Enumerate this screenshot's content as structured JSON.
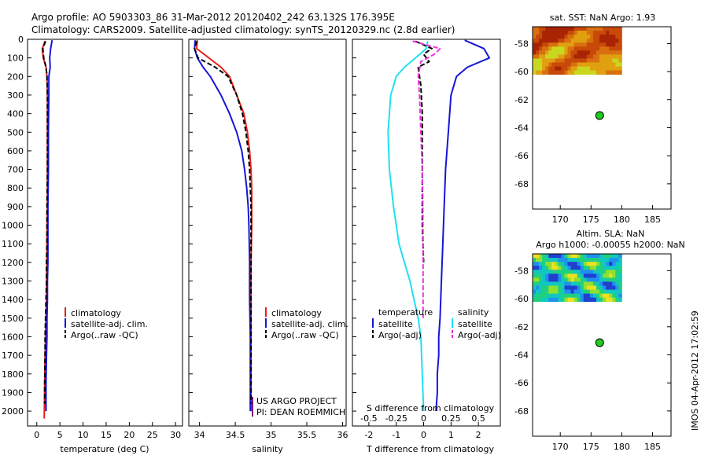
{
  "header": {
    "line1": "Argo profile: AO 5903303_86 31-Mar-2012 20120402_242 63.132S 176.395E",
    "line2": "Climatology: CARS2009. Satellite-adjusted climatology: synTS_20120329.nc (2.8d earlier)"
  },
  "colors": {
    "climatology": "#e8201a",
    "satellite": "#1515d8",
    "argo": "#000000",
    "satellite_salinity": "#20e0f0",
    "argo_salinity_diff": "#f030e0",
    "marker": "#22cc22"
  },
  "legend_profiles": [
    "climatology",
    "satellite-adj. clim.",
    "Argo(..raw -QC)"
  ],
  "legend_diff": {
    "temperature_head": "temperature",
    "salinity_head": "salinity",
    "satellite": "satellite",
    "argo": "Argo(-adj)"
  },
  "project": {
    "line1": "US ARGO PROJECT",
    "line2": "PI: DEAN ROEMMICH"
  },
  "map_sst": {
    "title": "sat. SST: NaN Argo: 1.93"
  },
  "map_sla": {
    "title1": "Altim. SLA: NaN",
    "title2": "Argo h1000: -0.00055 h2000: NaN"
  },
  "footer": {
    "vertical": "IMOS 04-Apr-2012 17:02:59"
  },
  "chart_data": [
    {
      "type": "line",
      "name": "temperature profile",
      "xlabel": "temperature (deg C)",
      "ylabel": "",
      "xlim": [
        -2,
        31.5
      ],
      "ylim": [
        2080,
        0
      ],
      "xticks": [
        0,
        5,
        10,
        15,
        20,
        25,
        30
      ],
      "yticks": [
        0,
        100,
        200,
        300,
        400,
        500,
        600,
        700,
        800,
        900,
        1000,
        1100,
        1200,
        1300,
        1400,
        1500,
        1600,
        1700,
        1800,
        1900,
        2000
      ],
      "series": [
        {
          "name": "climatology",
          "color": "#e8201a",
          "dash": "solid",
          "x": [
            1.8,
            1.2,
            1.4,
            2.0,
            2.2,
            2.3,
            2.3,
            2.3,
            2.3,
            2.2,
            2.2,
            2.1,
            2.1,
            2.0,
            1.9,
            1.8,
            1.7,
            1.6
          ],
          "y": [
            10,
            50,
            100,
            150,
            200,
            300,
            500,
            700,
            900,
            1100,
            1200,
            1300,
            1400,
            1500,
            1600,
            1700,
            1850,
            2040
          ]
        },
        {
          "name": "satellite-adj. clim.",
          "color": "#1515d8",
          "dash": "solid",
          "x": [
            3.3,
            3.0,
            2.8,
            2.9,
            2.6,
            2.6,
            2.5,
            2.5,
            2.4,
            2.4,
            2.4,
            2.3,
            2.3,
            2.2,
            2.2,
            2.1,
            2.0,
            2.0
          ],
          "y": [
            5,
            50,
            100,
            150,
            200,
            300,
            500,
            700,
            900,
            1100,
            1200,
            1300,
            1400,
            1500,
            1600,
            1700,
            1850,
            2000
          ]
        },
        {
          "name": "Argo(..raw -QC)",
          "color": "#000000",
          "dash": "dashed",
          "x": [
            1.9,
            1.3,
            1.5,
            2.0,
            2.2,
            2.3,
            2.3,
            2.3,
            2.2,
            2.2,
            2.1,
            2.1,
            2.0,
            1.9,
            1.8,
            1.8,
            1.7,
            1.7
          ],
          "y": [
            10,
            50,
            100,
            150,
            200,
            300,
            500,
            700,
            900,
            1100,
            1200,
            1300,
            1400,
            1500,
            1600,
            1700,
            1850,
            1960
          ]
        }
      ]
    },
    {
      "type": "line",
      "name": "salinity profile",
      "xlabel": "salinity",
      "ylabel": "",
      "xlim": [
        33.85,
        36.05
      ],
      "ylim": [
        2080,
        0
      ],
      "xticks": [
        34,
        34.5,
        35,
        35.5,
        36
      ],
      "series": [
        {
          "name": "climatology",
          "color": "#e8201a",
          "dash": "solid",
          "x": [
            33.97,
            33.96,
            34.13,
            34.3,
            34.42,
            34.52,
            34.62,
            34.67,
            34.7,
            34.72,
            34.73,
            34.73,
            34.73,
            34.72,
            34.72,
            34.72,
            34.72,
            34.72
          ],
          "y": [
            5,
            50,
            100,
            150,
            200,
            300,
            400,
            500,
            600,
            700,
            800,
            900,
            1000,
            1200,
            1400,
            1600,
            1800,
            2000
          ]
        },
        {
          "name": "satellite-adj. clim.",
          "color": "#1515d8",
          "dash": "solid",
          "x": [
            33.94,
            33.93,
            33.97,
            34.05,
            34.15,
            34.3,
            34.42,
            34.52,
            34.59,
            34.63,
            34.66,
            34.68,
            34.69,
            34.7,
            34.7,
            34.71,
            34.71,
            34.71
          ],
          "y": [
            5,
            50,
            100,
            150,
            200,
            300,
            400,
            500,
            600,
            700,
            800,
            900,
            1000,
            1200,
            1400,
            1600,
            1800,
            2000
          ]
        },
        {
          "name": "Argo(..raw -QC)",
          "color": "#000000",
          "dash": "dashed",
          "x": [
            33.96,
            33.93,
            33.98,
            34.22,
            34.4,
            34.52,
            34.6,
            34.65,
            34.68,
            34.7,
            34.71,
            34.72,
            34.72,
            34.72,
            34.72,
            34.72,
            34.72,
            34.72
          ],
          "y": [
            10,
            50,
            100,
            150,
            200,
            300,
            400,
            500,
            600,
            700,
            800,
            900,
            1000,
            1200,
            1400,
            1600,
            1800,
            1960
          ]
        }
      ]
    },
    {
      "type": "line",
      "name": "difference from climatology",
      "xlabel": "T difference from climatology",
      "xlabel2": "S difference from climatology",
      "xlim": [
        -2.6,
        2.8
      ],
      "ylim": [
        2080,
        0
      ],
      "xticks": [
        -2,
        -1,
        0,
        1,
        2
      ],
      "xticks2": [
        -0.5,
        -0.25,
        0,
        0.25,
        0.5
      ],
      "series": [
        {
          "name": "temperature satellite",
          "color": "#1515d8",
          "dash": "solid",
          "x": [
            1.5,
            2.2,
            2.4,
            1.6,
            1.2,
            1.0,
            0.9,
            0.8,
            0.75,
            0.7,
            0.65,
            0.6,
            0.55,
            0.55,
            0.5,
            0.5,
            0.45
          ],
          "y": [
            5,
            50,
            100,
            150,
            200,
            300,
            500,
            700,
            900,
            1100,
            1300,
            1500,
            1600,
            1700,
            1800,
            1900,
            2000
          ]
        },
        {
          "name": "temperature Argo(-adj)",
          "color": "#000000",
          "dash": "dashed",
          "x": [
            -0.3,
            0.3,
            0.0,
            0.2,
            -0.2,
            -0.1,
            -0.05,
            -0.05,
            -0.05,
            -0.05,
            0.0
          ],
          "y": [
            10,
            50,
            80,
            120,
            150,
            250,
            400,
            600,
            800,
            1000,
            1200
          ]
        },
        {
          "name": "salinity satellite",
          "color": "#20e0f0",
          "dash": "solid",
          "x": [
            0.15,
            0.1,
            -0.3,
            -0.7,
            -1.0,
            -1.2,
            -1.3,
            -1.25,
            -1.1,
            -0.9,
            -0.7,
            -0.5,
            -0.35,
            -0.2,
            -0.1,
            -0.05,
            0.0
          ],
          "y": [
            10,
            50,
            100,
            150,
            200,
            300,
            500,
            700,
            900,
            1100,
            1200,
            1300,
            1400,
            1500,
            1600,
            1800,
            2000
          ]
        },
        {
          "name": "salinity Argo(-adj)",
          "color": "#f030e0",
          "dash": "dashed",
          "x": [
            -0.4,
            0.6,
            0.4,
            -0.1,
            -0.2,
            -0.15,
            -0.1,
            -0.05,
            -0.03,
            -0.02,
            -0.02,
            -0.02
          ],
          "y": [
            10,
            50,
            80,
            120,
            200,
            300,
            500,
            700,
            900,
            1100,
            1300,
            1500
          ]
        }
      ]
    },
    {
      "type": "heatmap",
      "name": "sat. SST map",
      "title": "sat. SST: NaN Argo: 1.93",
      "xlim": [
        165.5,
        188
      ],
      "ylim": [
        -69.8,
        -56.8
      ],
      "xticks": [
        170,
        175,
        180,
        185
      ],
      "yticks": [
        -58,
        -60,
        -62,
        -64,
        -66,
        -68
      ],
      "data_extent": {
        "lon": [
          165.5,
          180
        ],
        "lat": [
          -60.2,
          -56.8
        ]
      },
      "argo_position": {
        "lon": 176.4,
        "lat": -63.13
      }
    },
    {
      "type": "heatmap",
      "name": "Altim. SLA map",
      "title": "Altim. SLA: NaN",
      "xlim": [
        165.5,
        188
      ],
      "ylim": [
        -69.8,
        -56.8
      ],
      "xticks": [
        170,
        175,
        180,
        185
      ],
      "yticks": [
        -58,
        -60,
        -62,
        -64,
        -66,
        -68
      ],
      "data_extent": {
        "lon": [
          165.5,
          180
        ],
        "lat": [
          -60.2,
          -56.8
        ]
      },
      "argo_position": {
        "lon": 176.4,
        "lat": -63.13
      }
    }
  ]
}
